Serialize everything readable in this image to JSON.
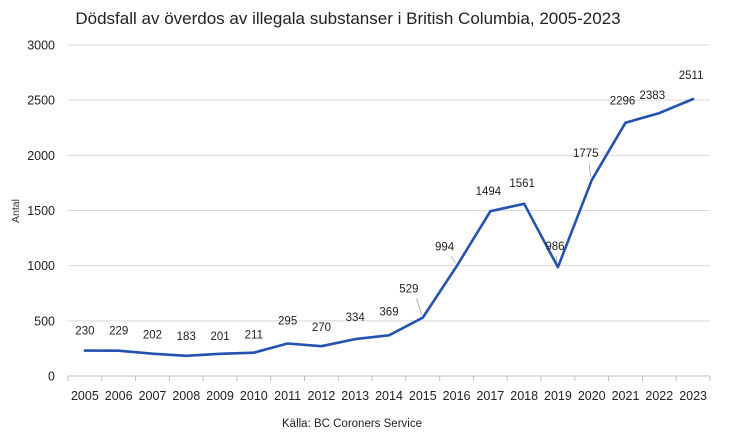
{
  "chart_data": {
    "type": "line",
    "title": "Dödsfall av överdos av illegala substanser i British Columbia, 2005-2023",
    "xlabel": "",
    "ylabel": "Antal",
    "source": "Källa: BC Coroners Service",
    "categories": [
      "2005",
      "2006",
      "2007",
      "2008",
      "2009",
      "2010",
      "2011",
      "2012",
      "2013",
      "2014",
      "2015",
      "2016",
      "2017",
      "2018",
      "2019",
      "2020",
      "2021",
      "2022",
      "2023"
    ],
    "series": [
      {
        "name": "Dödsfall",
        "values": [
          230,
          229,
          202,
          183,
          201,
          211,
          295,
          270,
          334,
          369,
          529,
          994,
          1494,
          1561,
          986,
          1775,
          2296,
          2383,
          2511
        ],
        "labels": [
          "230",
          "229",
          "202",
          "183",
          "201",
          "211",
          "295",
          "270",
          "334",
          "369",
          "529",
          "994",
          "1494",
          "1561",
          "986",
          "1775",
          "2296",
          "2383",
          "2511"
        ],
        "color": "#2452b0"
      }
    ],
    "ylim": [
      0,
      3000
    ],
    "yticks": [
      "0",
      "500",
      "1000",
      "1500",
      "2000",
      "2500",
      "3000"
    ],
    "ytick_values": [
      0,
      500,
      1000,
      1500,
      2000,
      2500,
      3000
    ],
    "grid": true,
    "legend": "none",
    "colors": {
      "grid": "#d9d9d9",
      "axis": "#bfbfbf",
      "line": "#2452b0"
    }
  }
}
